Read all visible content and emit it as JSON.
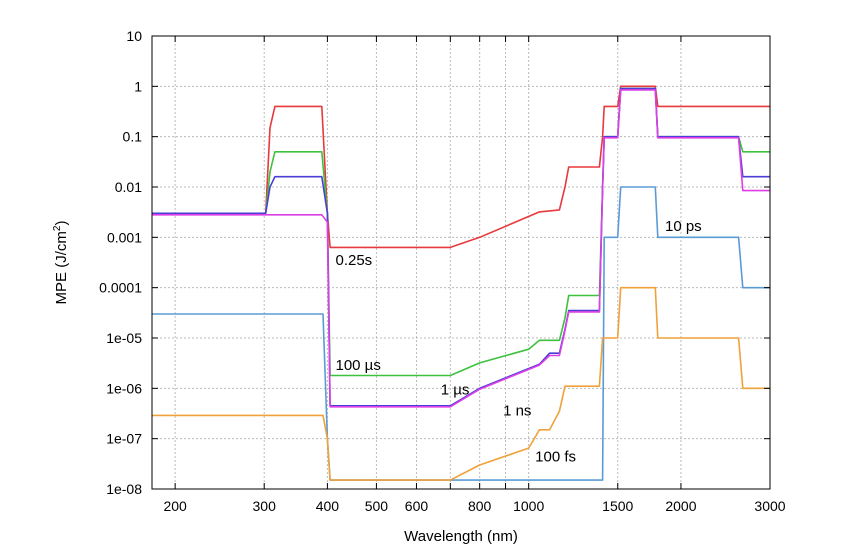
{
  "chart_data": {
    "type": "line",
    "xlabel": "Wavelength (nm)",
    "ylabel_main": "MPE (J/cm",
    "ylabel_sup": "2",
    "ylabel_end": ")",
    "x_scale": "log",
    "y_scale": "log",
    "xlim": [
      180,
      3000
    ],
    "ylim": [
      1e-08,
      10
    ],
    "grid": true,
    "x_ticks": [
      {
        "value": 200,
        "label": "200"
      },
      {
        "value": 300,
        "label": "300"
      },
      {
        "value": 400,
        "label": "400"
      },
      {
        "value": 500,
        "label": "500"
      },
      {
        "value": 600,
        "label": "600"
      },
      {
        "value": 800,
        "label": "800"
      },
      {
        "value": 1000,
        "label": "1000"
      },
      {
        "value": 1500,
        "label": "1500"
      },
      {
        "value": 2000,
        "label": "2000"
      },
      {
        "value": 3000,
        "label": "3000"
      }
    ],
    "x_grid_minor": [
      700,
      900
    ],
    "y_ticks": [
      {
        "value": 1e-08,
        "label": "1e-08"
      },
      {
        "value": 1e-07,
        "label": "1e-07"
      },
      {
        "value": 1e-06,
        "label": "1e-06"
      },
      {
        "value": 1e-05,
        "label": "1e-05"
      },
      {
        "value": 0.0001,
        "label": "0.0001"
      },
      {
        "value": 0.001,
        "label": "0.001"
      },
      {
        "value": 0.01,
        "label": "0.01"
      },
      {
        "value": 0.1,
        "label": "0.1"
      },
      {
        "value": 1,
        "label": "1"
      },
      {
        "value": 10,
        "label": "10"
      }
    ],
    "series": [
      {
        "id": "s-0-25s",
        "color": "#e8393c",
        "x": [
          180,
          302,
          308,
          315,
          390,
          400,
          405,
          700,
          800,
          1050,
          1150,
          1180,
          1200,
          1250,
          1380,
          1400,
          1410,
          1500,
          1520,
          1780,
          1800,
          3000
        ],
        "y": [
          0.003,
          0.003,
          0.15,
          0.4,
          0.4,
          0.003,
          0.00063,
          0.00063,
          0.001,
          0.0032,
          0.0035,
          0.01,
          0.025,
          0.025,
          0.025,
          0.1,
          0.4,
          0.4,
          1.0,
          1.0,
          0.4,
          0.4
        ]
      },
      {
        "id": "s-100us",
        "color": "#3dc23d",
        "x": [
          180,
          302,
          308,
          315,
          390,
          400,
          405,
          700,
          800,
          1000,
          1050,
          1150,
          1180,
          1200,
          1380,
          1400,
          1410,
          1500,
          1520,
          1780,
          1800,
          2600,
          2650,
          3000
        ],
        "y": [
          0.003,
          0.003,
          0.02,
          0.05,
          0.05,
          0.003,
          1.8e-06,
          1.8e-06,
          3.2e-06,
          6e-06,
          9e-06,
          9e-06,
          2.5e-05,
          7e-05,
          7e-05,
          0.01,
          0.1,
          0.1,
          0.9,
          0.9,
          0.1,
          0.1,
          0.05,
          0.05
        ]
      },
      {
        "id": "s-1ns",
        "color": "#4b3fd6",
        "x": [
          180,
          302,
          308,
          315,
          390,
          400,
          405,
          700,
          800,
          1050,
          1100,
          1150,
          1180,
          1200,
          1250,
          1380,
          1400,
          1410,
          1500,
          1520,
          1780,
          1800,
          2600,
          2650,
          3000
        ],
        "y": [
          0.003,
          0.003,
          0.01,
          0.016,
          0.016,
          0.003,
          4.5e-07,
          4.5e-07,
          1e-06,
          3e-06,
          5e-06,
          5e-06,
          1.5e-05,
          3.5e-05,
          3.5e-05,
          3.5e-05,
          0.01,
          0.1,
          0.1,
          0.9,
          0.9,
          0.1,
          0.1,
          0.016,
          0.016
        ]
      },
      {
        "id": "s-1us",
        "color": "#dd3ee6",
        "x": [
          180,
          390,
          400,
          405,
          700,
          800,
          1050,
          1100,
          1150,
          1180,
          1200,
          1250,
          1380,
          1400,
          1410,
          1500,
          1520,
          1780,
          1800,
          2600,
          2650,
          3000
        ],
        "y": [
          0.0028,
          0.0028,
          0.002,
          4.3e-07,
          4.3e-07,
          9.6e-07,
          2.9e-06,
          4.5e-06,
          4.5e-06,
          1.4e-05,
          3.3e-05,
          3.3e-05,
          3.3e-05,
          0.009,
          0.095,
          0.095,
          0.85,
          0.85,
          0.095,
          0.095,
          0.0085,
          0.0085
        ]
      },
      {
        "id": "s-10ps",
        "color": "#5b9bd5",
        "x": [
          180,
          392,
          400,
          405,
          1400,
          1410,
          1500,
          1520,
          1620,
          1780,
          1800,
          2600,
          2650,
          3000
        ],
        "y": [
          3e-05,
          3e-05,
          1e-07,
          1.5e-08,
          1.5e-08,
          0.001,
          0.001,
          0.01,
          0.01,
          0.01,
          0.001,
          0.001,
          0.0001,
          0.0001
        ]
      },
      {
        "id": "s-100fs",
        "color": "#f0a13a",
        "x": [
          180,
          392,
          400,
          405,
          700,
          800,
          1000,
          1050,
          1100,
          1150,
          1180,
          1250,
          1380,
          1400,
          1410,
          1500,
          1520,
          1620,
          1780,
          1800,
          2600,
          2650,
          3000
        ],
        "y": [
          2.9e-07,
          2.9e-07,
          1e-07,
          1.5e-08,
          1.5e-08,
          3e-08,
          6.5e-08,
          1.5e-07,
          1.5e-07,
          3.5e-07,
          1.1e-06,
          1.1e-06,
          1.1e-06,
          1e-05,
          1e-05,
          1e-05,
          0.0001,
          0.0001,
          0.0001,
          1e-05,
          1e-05,
          1e-06,
          1e-06
        ]
      }
    ],
    "annotations": [
      {
        "id": "label-0-25s",
        "text": "0.25s",
        "x": 415,
        "y": 0.00028
      },
      {
        "id": "label-100us",
        "text": "100 µs",
        "x": 415,
        "y": 2.3e-06
      },
      {
        "id": "label-1us",
        "text": "1 µs",
        "x": 670,
        "y": 7.5e-07
      },
      {
        "id": "label-1ns",
        "text": "1 ns",
        "x": 890,
        "y": 2.9e-07
      },
      {
        "id": "label-100fs",
        "text": "100 fs",
        "x": 1030,
        "y": 3.5e-08
      },
      {
        "id": "label-10ps",
        "text": "10 ps",
        "x": 1860,
        "y": 0.00135
      }
    ]
  }
}
